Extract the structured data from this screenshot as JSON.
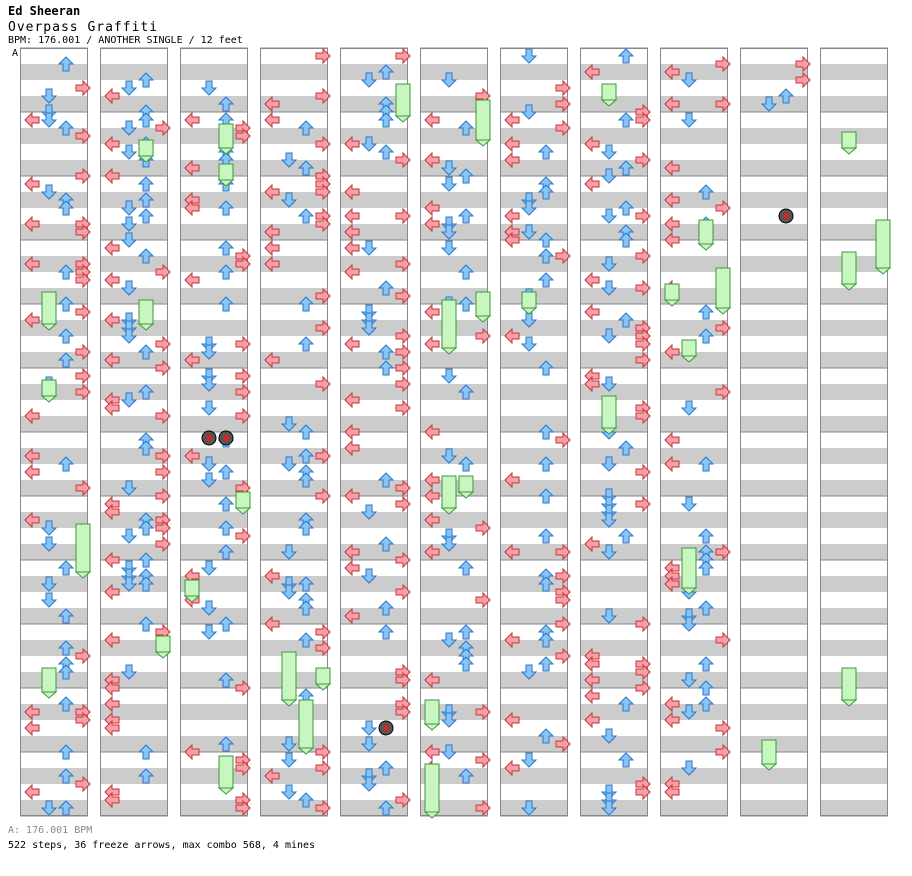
{
  "header": {
    "artist": "Ed Sheeran",
    "title": "Overpass Graffiti",
    "meta": "BPM: 176.001 / ANOTHER SINGLE / 12 feet",
    "section_marker": "A"
  },
  "footer": {
    "bpm_line": "A: 176.001 BPM",
    "stats": "522 steps, 36 freeze arrows, max combo 568, 4 mines"
  },
  "chart_data": {
    "type": "stepchart",
    "mode": "single",
    "difficulty": "ANOTHER",
    "level_feet": 12,
    "bpm": 176.001,
    "columns": 11,
    "measures_per_column": 12,
    "lanes": [
      "left",
      "down",
      "up",
      "right"
    ],
    "steps": 522,
    "freeze_arrows": 36,
    "max_combo": 568,
    "mines": 4,
    "colors": {
      "left_right": "#f7a0a8",
      "up_down": "#88c4f4",
      "freeze": "#c8f5c0",
      "stripe": "#cccccc"
    }
  }
}
